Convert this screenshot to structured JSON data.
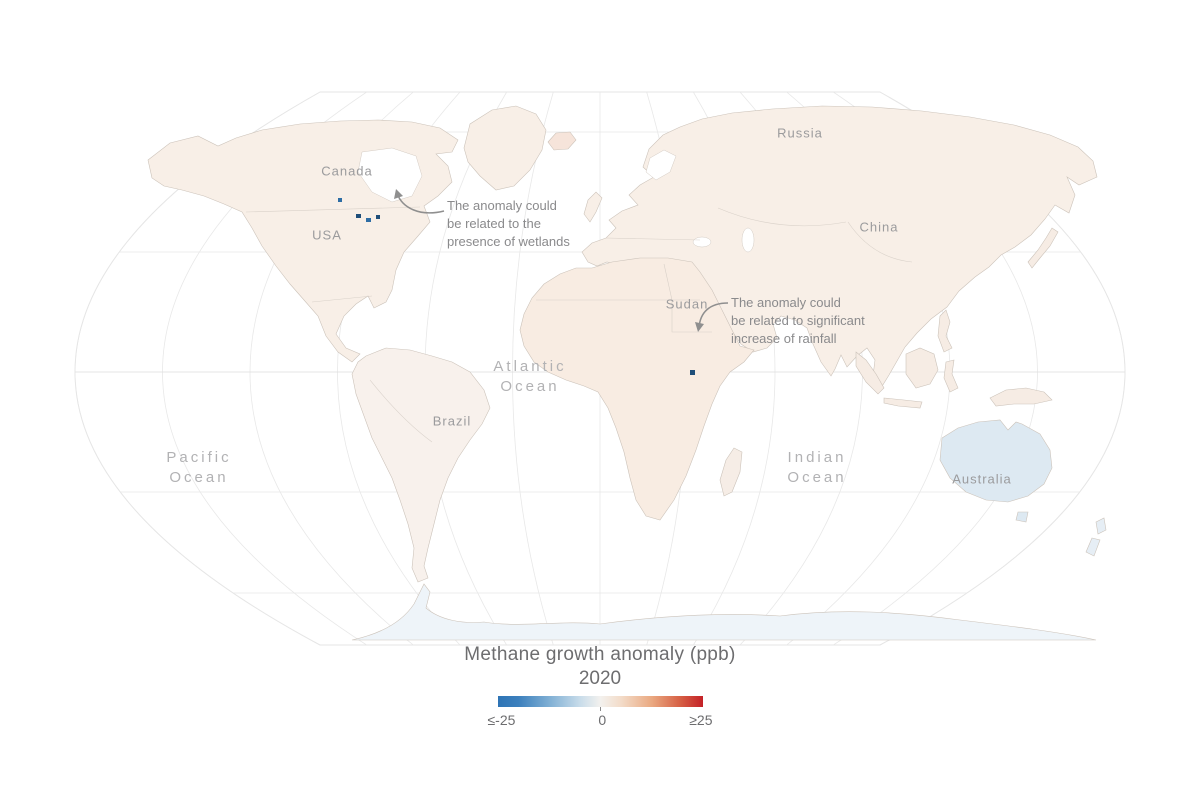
{
  "legend": {
    "title": "Methane growth anomaly (ppb)",
    "year": "2020",
    "min_label": "≤-25",
    "mid_label": "0",
    "max_label": "≥25",
    "colors": {
      "min": "#2e74b5",
      "mid": "#f3f1ee",
      "max": "#c42127"
    }
  },
  "map": {
    "projection": "robinson-world",
    "country_labels": [
      {
        "name": "Canada"
      },
      {
        "name": "USA"
      },
      {
        "name": "Russia"
      },
      {
        "name": "China"
      },
      {
        "name": "Sudan"
      },
      {
        "name": "Brazil"
      },
      {
        "name": "Australia"
      }
    ],
    "ocean_labels": [
      {
        "line1": "Pacific",
        "line2": "Ocean"
      },
      {
        "line1": "Atlantic",
        "line2": "Ocean"
      },
      {
        "line1": "Indian",
        "line2": "Ocean"
      }
    ],
    "annotations": [
      {
        "lines": [
          "The anomaly could",
          "be related to the",
          "presence of wetlands"
        ]
      },
      {
        "lines": [
          "The anomaly could",
          "be related to significant",
          "increase of rainfall"
        ]
      }
    ]
  }
}
